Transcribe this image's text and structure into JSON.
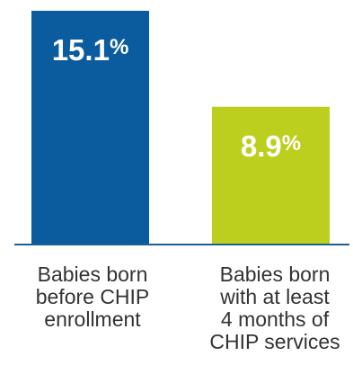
{
  "chart_data": {
    "type": "bar",
    "categories": [
      [
        "Babies born",
        "before CHIP",
        "enrollment"
      ],
      [
        "Babies born",
        "with at least",
        "4 months of",
        "CHIP services"
      ]
    ],
    "values": [
      15.1,
      8.9
    ],
    "value_labels": [
      "15.1",
      "8.9"
    ],
    "unit": "%",
    "ylim": [
      0,
      15.1
    ],
    "colors": [
      "#0A5C9E",
      "#BCCF1F"
    ],
    "baseline_color": "#1F5F8F",
    "label_color": "#333333",
    "grid": false,
    "title": "",
    "xlabel": "",
    "ylabel": ""
  }
}
